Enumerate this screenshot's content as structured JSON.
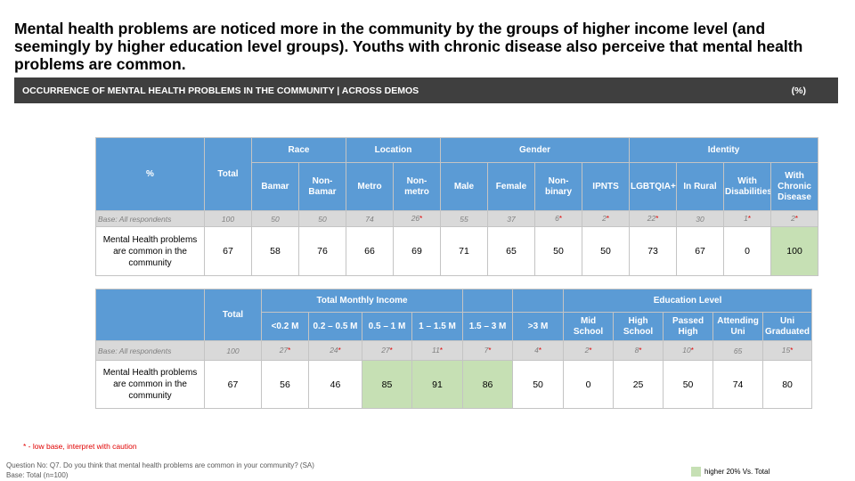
{
  "headline": "Mental health problems are noticed more in the community by the groups of higher income level (and seemingly by higher education level groups). Youths with chronic disease also perceive that mental health problems are common.",
  "band": {
    "title": "OCCURRENCE OF MENTAL HEALTH PROBLEMS IN THE COMMUNITY | ACROSS DEMOS",
    "unit": "(%)"
  },
  "table1": {
    "corner": "%",
    "total": "Total",
    "groups": {
      "race": "Race",
      "location": "Location",
      "gender": "Gender",
      "identity": "Identity"
    },
    "columns": [
      "Bamar",
      "Non-Bamar",
      "Metro",
      "Non-metro",
      "Male",
      "Female",
      "Non-binary",
      "IPNTS",
      "LGBTQIA+",
      "In Rural",
      "With Disabilities",
      "With Chronic Disease"
    ],
    "base_label": "Base: All respondents",
    "base_total": "100",
    "base": [
      "50",
      "50",
      "74",
      "26",
      "55",
      "37",
      "6",
      "2",
      "22",
      "30",
      "1",
      "2"
    ],
    "low_base": [
      false,
      false,
      false,
      true,
      false,
      false,
      true,
      true,
      true,
      false,
      true,
      true
    ],
    "row_label": "Mental Health problems are common in the community",
    "value_total": "67",
    "values": [
      "58",
      "76",
      "66",
      "69",
      "71",
      "65",
      "50",
      "50",
      "73",
      "67",
      "0",
      "100"
    ],
    "highlight": [
      false,
      false,
      false,
      false,
      false,
      false,
      false,
      false,
      false,
      false,
      false,
      true
    ]
  },
  "table2": {
    "total": "Total",
    "groups": {
      "income": "Total Monthly Income",
      "education": "Education Level"
    },
    "columns": [
      "<0.2 M",
      "0.2 – 0.5 M",
      "0.5 – 1 M",
      "1 – 1.5 M",
      "1.5 – 3 M",
      ">3 M",
      "Mid School",
      "High School",
      "Passed High",
      "Attending Uni",
      "Uni Graduated"
    ],
    "base_label": "Base: All respondents",
    "base_total": "100",
    "base": [
      "27",
      "24",
      "27",
      "11",
      "7",
      "4",
      "2",
      "8",
      "10",
      "65",
      "15"
    ],
    "low_base": [
      true,
      true,
      true,
      true,
      true,
      true,
      true,
      true,
      true,
      false,
      true
    ],
    "row_label": "Mental Health problems are common in the community",
    "value_total": "67",
    "values": [
      "56",
      "46",
      "85",
      "91",
      "86",
      "50",
      "0",
      "25",
      "50",
      "74",
      "80"
    ],
    "highlight": [
      false,
      false,
      true,
      true,
      true,
      false,
      false,
      false,
      false,
      false,
      false
    ]
  },
  "low_base_mark": "*",
  "footnotes": {
    "low_base": "* - low base, interpret with caution",
    "question": "Question No: Q7. Do you think that mental health problems are common in your community? (SA)",
    "base": "Base: Total (n=100)"
  },
  "legend": {
    "label": "higher 20% Vs. Total",
    "color": "#c6e0b4"
  },
  "colors": {
    "header": "#5b9bd5",
    "band": "#3f3f3f",
    "base_row": "#d9d9d9",
    "highlight": "#c6e0b4",
    "low_base_mark": "#e00000"
  }
}
